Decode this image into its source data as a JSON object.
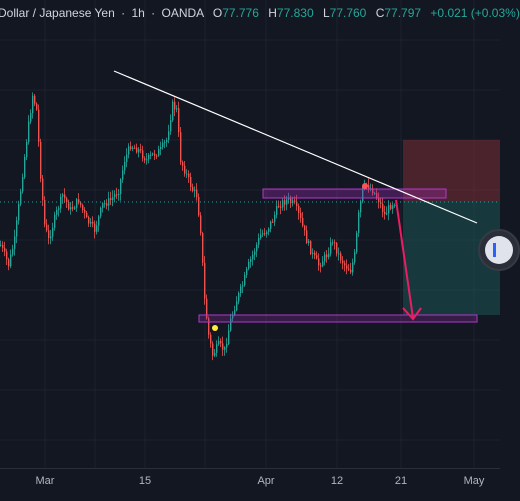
{
  "legend": {
    "symbol": "Dollar / Japanese Yen",
    "separator": "·",
    "interval": "1h",
    "broker": "OANDA",
    "open_label": "O",
    "open": "77.776",
    "high_label": "H",
    "high": "77.830",
    "low_label": "L",
    "low": "77.760",
    "close_label": "C",
    "close": "77.797",
    "change": "+0.021 (+0.03%)"
  },
  "time_axis": {
    "ticks": [
      "Mar",
      "15",
      "Apr",
      "12",
      "21",
      "May"
    ]
  },
  "colors": {
    "background": "#131722",
    "up": "#26a69a",
    "down": "#ef5350",
    "trendline": "#ffffff",
    "zone_border": "#9c27b0",
    "arrow": "#e91e63",
    "stop_zone": "#7a2d35",
    "target_zone": "#1a5052",
    "marker_yellow": "#ffeb3b",
    "marker_red": "#ff5252"
  },
  "icons": {
    "scroll_button": "play-icon"
  }
}
